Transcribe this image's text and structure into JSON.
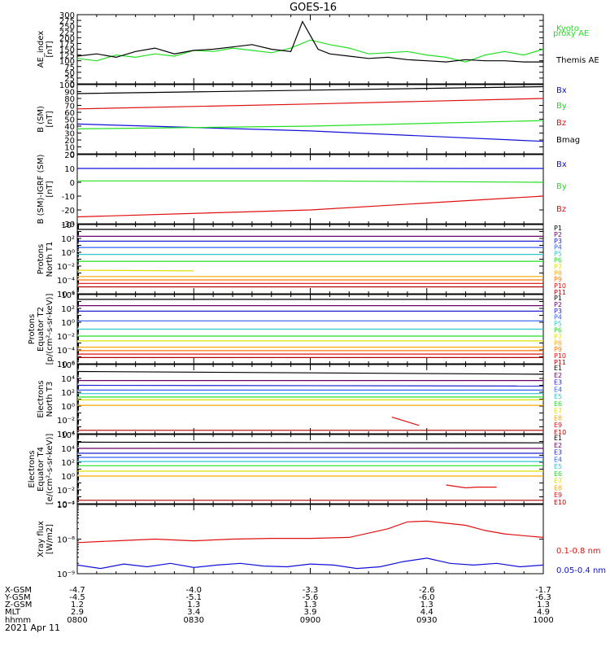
{
  "title": "GOES-16",
  "date_label": "2021 Apr 11",
  "colors": {
    "axis": "#000000",
    "black": "#000000",
    "green": "#22e022",
    "red": "#e01010",
    "blue": "#1010d8"
  },
  "chart_data": [
    {
      "id": "ae",
      "type": "line",
      "ylabel": [
        "AE_index",
        "[nT]"
      ],
      "ylim": [
        0,
        300
      ],
      "yticks": [
        "0",
        "25",
        "50",
        "75",
        "100",
        "125",
        "150",
        "175",
        "200",
        "225",
        "250",
        "275",
        "300"
      ],
      "xlim": [
        0,
        120
      ],
      "series": [
        {
          "name": "Kyoto",
          "name2": "proxy AE",
          "color": "#22e022",
          "x": [
            0,
            5,
            10,
            15,
            20,
            25,
            30,
            35,
            40,
            45,
            50,
            55,
            60,
            65,
            70,
            75,
            80,
            85,
            90,
            95,
            100,
            105,
            110,
            115,
            120
          ],
          "values": [
            110,
            100,
            125,
            115,
            130,
            120,
            145,
            140,
            155,
            145,
            135,
            155,
            190,
            170,
            155,
            130,
            135,
            140,
            125,
            115,
            95,
            125,
            140,
            125,
            150
          ]
        },
        {
          "name": "Themis AE",
          "color": "#000000",
          "x": [
            0,
            5,
            10,
            15,
            20,
            25,
            30,
            35,
            40,
            45,
            50,
            55,
            58,
            62,
            65,
            70,
            75,
            80,
            85,
            90,
            95,
            100,
            105,
            110,
            115,
            120
          ],
          "values": [
            120,
            130,
            115,
            140,
            155,
            130,
            145,
            150,
            160,
            170,
            150,
            140,
            270,
            150,
            130,
            120,
            110,
            115,
            105,
            100,
            95,
            105,
            100,
            100,
            95,
            95
          ]
        }
      ]
    },
    {
      "id": "b",
      "type": "line",
      "ylabel": [
        "B (SM)",
        "[nT]"
      ],
      "ylim": [
        0,
        100
      ],
      "yticks": [
        "0",
        "10",
        "20",
        "30",
        "40",
        "50",
        "60",
        "70",
        "80",
        "90",
        "100"
      ],
      "xlim": [
        0,
        120
      ],
      "series": [
        {
          "name": "Bx",
          "color": "#1010d8",
          "x": [
            0,
            60,
            120
          ],
          "values": [
            43,
            33,
            18
          ]
        },
        {
          "name": "By",
          "color": "#22e022",
          "x": [
            0,
            60,
            120
          ],
          "values": [
            36,
            40,
            48
          ]
        },
        {
          "name": "Bz",
          "color": "#e01010",
          "x": [
            0,
            60,
            120
          ],
          "values": [
            65,
            72,
            80
          ]
        },
        {
          "name": "Bmag",
          "color": "#000000",
          "x": [
            0,
            60,
            120
          ],
          "values": [
            87,
            92,
            97
          ]
        }
      ]
    },
    {
      "id": "dbsm",
      "type": "line",
      "ylabel": [
        "B (SM)-IGRF (SM)",
        "[nT]"
      ],
      "ylim": [
        -30,
        20
      ],
      "yticks": [
        "-30",
        "-20",
        "-10",
        "0",
        "10",
        "20"
      ],
      "xlim": [
        0,
        120
      ],
      "series": [
        {
          "name": "Bx",
          "color": "#1010d8",
          "x": [
            0,
            60,
            120
          ],
          "values": [
            10,
            10,
            10
          ]
        },
        {
          "name": "By",
          "color": "#22e022",
          "x": [
            0,
            60,
            120
          ],
          "values": [
            1,
            1,
            0
          ]
        },
        {
          "name": "Bz",
          "color": "#e01010",
          "x": [
            0,
            60,
            120
          ],
          "values": [
            -25,
            -20,
            -10
          ]
        }
      ]
    },
    {
      "id": "pn",
      "type": "line",
      "log": true,
      "ylabel": [
        "Protons",
        "North T1"
      ],
      "ylim": [
        -6,
        4
      ],
      "major": [
        -6,
        -4,
        -2,
        0,
        2,
        4
      ],
      "xlim": [
        0,
        120
      ],
      "series": [
        {
          "name": "P1",
          "color": "#000000",
          "x": [
            0,
            120
          ],
          "values": [
            3.3,
            3.3
          ]
        },
        {
          "name": "P2",
          "color": "#6a006a",
          "x": [
            0,
            120
          ],
          "values": [
            2.3,
            2.3
          ]
        },
        {
          "name": "P3",
          "color": "#2020d0",
          "x": [
            0,
            120
          ],
          "values": [
            1.6,
            1.6
          ]
        },
        {
          "name": "P4",
          "color": "#3060ff",
          "x": [
            0,
            120
          ],
          "values": [
            0.7,
            0.7
          ]
        },
        {
          "name": "P5",
          "color": "#30c8d0",
          "x": [
            0,
            120
          ],
          "values": [
            -0.3,
            -0.3
          ]
        },
        {
          "name": "P6",
          "color": "#22e022",
          "x": [
            0,
            120
          ],
          "values": [
            -1.3,
            -1.3
          ]
        },
        {
          "name": "P7",
          "color": "#e0e000",
          "x": [
            0,
            30
          ],
          "values": [
            -2.6,
            -2.7
          ]
        },
        {
          "name": "P8",
          "color": "#ffaa00",
          "x": [
            0,
            120
          ],
          "values": [
            -3.5,
            -3.5
          ]
        },
        {
          "name": "P9",
          "color": "#ff7700",
          "x": [
            0,
            120
          ],
          "values": [
            -4.0,
            -4.0
          ]
        },
        {
          "name": "P10",
          "color": "#e01010",
          "x": [
            0,
            120
          ],
          "values": [
            -4.5,
            -4.5
          ]
        },
        {
          "name": "P11",
          "color": "#b00000",
          "x": [
            0,
            120
          ],
          "values": [
            -5.0,
            -5.0
          ]
        }
      ]
    },
    {
      "id": "pe",
      "type": "line",
      "log": true,
      "ylabel": [
        "Protons",
        "Equator T2",
        "[p/(cm²-s-sr-keV)]"
      ],
      "ylim": [
        -6,
        4
      ],
      "major": [
        -6,
        -4,
        -2,
        0,
        2,
        4
      ],
      "xlim": [
        0,
        120
      ],
      "series": [
        {
          "name": "P1",
          "color": "#000000",
          "x": [
            0,
            120
          ],
          "values": [
            3.3,
            3.3
          ]
        },
        {
          "name": "P2",
          "color": "#6a006a",
          "x": [
            0,
            120
          ],
          "values": [
            2.4,
            2.4
          ]
        },
        {
          "name": "P3",
          "color": "#2020d0",
          "x": [
            0,
            120
          ],
          "values": [
            1.6,
            1.6
          ]
        },
        {
          "name": "P4",
          "color": "#3060ff",
          "x": [
            0,
            120
          ],
          "values": [
            0.2,
            0.2
          ]
        },
        {
          "name": "P5",
          "color": "#30c8d0",
          "x": [
            0,
            120
          ],
          "values": [
            -1.0,
            -1.0
          ]
        },
        {
          "name": "P6",
          "color": "#22e022",
          "x": [
            0,
            120
          ],
          "values": [
            -2.0,
            -2.0
          ]
        },
        {
          "name": "P7",
          "color": "#e0e000",
          "x": [
            0,
            120
          ],
          "values": [
            -2.7,
            -2.7
          ]
        },
        {
          "name": "P8",
          "color": "#ffaa00",
          "x": [
            0,
            120
          ],
          "values": [
            -3.6,
            -3.6
          ]
        },
        {
          "name": "P9",
          "color": "#ff7700",
          "x": [
            0,
            120
          ],
          "values": [
            -4.1,
            -4.1
          ]
        },
        {
          "name": "P10",
          "color": "#e01010",
          "x": [
            0,
            120
          ],
          "values": [
            -4.6,
            -4.6
          ]
        },
        {
          "name": "P11",
          "color": "#b00000",
          "x": [
            0,
            120
          ],
          "values": [
            -5.1,
            -5.1
          ]
        }
      ]
    },
    {
      "id": "en",
      "type": "line",
      "log": true,
      "ylabel": [
        "Electrons",
        "North T3"
      ],
      "ylim": [
        -4,
        6
      ],
      "major": [
        -4,
        -2,
        0,
        2,
        4,
        6
      ],
      "xlim": [
        0,
        120
      ],
      "series": [
        {
          "name": "E1",
          "color": "#000000",
          "x": [
            0,
            120
          ],
          "values": [
            5.0,
            4.6
          ]
        },
        {
          "name": "E2",
          "color": "#6a006a",
          "x": [
            0,
            120
          ],
          "values": [
            3.7,
            3.7
          ]
        },
        {
          "name": "E3",
          "color": "#2020d0",
          "x": [
            0,
            120
          ],
          "values": [
            3.0,
            2.9
          ]
        },
        {
          "name": "E4",
          "color": "#3060ff",
          "x": [
            0,
            120
          ],
          "values": [
            2.3,
            2.3
          ]
        },
        {
          "name": "E5",
          "color": "#30c8d0",
          "x": [
            0,
            120
          ],
          "values": [
            1.8,
            1.8
          ]
        },
        {
          "name": "E6",
          "color": "#22e022",
          "x": [
            0,
            120
          ],
          "values": [
            1.3,
            1.3
          ]
        },
        {
          "name": "E7",
          "color": "#e0e000",
          "x": [
            0,
            120
          ],
          "values": [
            0.9,
            0.9
          ]
        },
        {
          "name": "E8",
          "color": "#ffaa00",
          "x": [
            0,
            120
          ],
          "values": [
            0.1,
            0.1
          ]
        },
        {
          "name": "E9",
          "color": "#e01010",
          "x": [
            81,
            88
          ],
          "values": [
            -1.6,
            -2.8
          ]
        },
        {
          "name": "E10",
          "color": "#b00000",
          "x": [
            0,
            120
          ],
          "values": [
            -3.5,
            -3.5
          ]
        }
      ]
    },
    {
      "id": "ee",
      "type": "line",
      "log": true,
      "ylabel": [
        "Electrons",
        "Equator T4",
        "[e/(cm²-s-sr-keV)]"
      ],
      "ylim": [
        -4,
        6
      ],
      "major": [
        -4,
        -2,
        0,
        2,
        4,
        6
      ],
      "xlim": [
        0,
        120
      ],
      "series": [
        {
          "name": "E1",
          "color": "#000000",
          "x": [
            0,
            120
          ],
          "values": [
            4.9,
            4.8
          ]
        },
        {
          "name": "E2",
          "color": "#6a006a",
          "x": [
            0,
            120
          ],
          "values": [
            4.0,
            4.0
          ]
        },
        {
          "name": "E3",
          "color": "#2020d0",
          "x": [
            0,
            120
          ],
          "values": [
            3.3,
            3.3
          ]
        },
        {
          "name": "E4",
          "color": "#3060ff",
          "x": [
            0,
            120
          ],
          "values": [
            2.7,
            2.7
          ]
        },
        {
          "name": "E5",
          "color": "#30c8d0",
          "x": [
            0,
            120
          ],
          "values": [
            2.1,
            2.1
          ]
        },
        {
          "name": "E6",
          "color": "#22e022",
          "x": [
            0,
            120
          ],
          "values": [
            1.5,
            1.5
          ]
        },
        {
          "name": "E7",
          "color": "#e0e000",
          "x": [
            0,
            120
          ],
          "values": [
            0.7,
            0.7
          ]
        },
        {
          "name": "E8",
          "color": "#ffaa00",
          "x": [
            0,
            120
          ],
          "values": [
            0.0,
            0.0
          ]
        },
        {
          "name": "E9",
          "color": "#e01010",
          "x": [
            95,
            100,
            103,
            108
          ],
          "values": [
            -1.3,
            -1.7,
            -1.6,
            -1.6
          ]
        },
        {
          "name": "E10",
          "color": "#b00000",
          "x": [
            0,
            120
          ],
          "values": [
            -3.5,
            -3.5
          ]
        }
      ]
    },
    {
      "id": "xray",
      "type": "line",
      "log": true,
      "ylabel": [
        "Xray flux",
        "[W/m2]"
      ],
      "ylim": [
        -9,
        -7
      ],
      "major": [
        -9,
        -8,
        -7
      ],
      "xlim": [
        0,
        120
      ],
      "series": [
        {
          "name": "0.1-0.8 nm",
          "color": "#e01010",
          "x": [
            0,
            10,
            20,
            30,
            40,
            50,
            60,
            70,
            80,
            85,
            90,
            100,
            105,
            110,
            115,
            120
          ],
          "values": [
            -8.1,
            -8.05,
            -8.0,
            -8.05,
            -8.0,
            -7.98,
            -7.98,
            -7.95,
            -7.7,
            -7.5,
            -7.48,
            -7.6,
            -7.75,
            -7.85,
            -7.9,
            -7.95
          ]
        },
        {
          "name": "0.05-0.4 nm",
          "color": "#1010d8",
          "x": [
            0,
            6,
            12,
            18,
            24,
            30,
            36,
            42,
            48,
            54,
            60,
            66,
            72,
            78,
            84,
            90,
            96,
            102,
            108,
            114,
            120
          ],
          "values": [
            -8.75,
            -8.85,
            -8.72,
            -8.8,
            -8.7,
            -8.82,
            -8.75,
            -8.7,
            -8.78,
            -8.8,
            -8.72,
            -8.75,
            -8.85,
            -8.8,
            -8.65,
            -8.55,
            -8.7,
            -8.75,
            -8.7,
            -8.8,
            -8.75
          ]
        }
      ]
    }
  ],
  "orbit": {
    "labels": [
      "X-GSM",
      "Y-GSM",
      "Z-GSM",
      "MLT",
      "hhmm"
    ],
    "columns": [
      {
        "t": 0,
        "vals": [
          "-4.7",
          "-4.5",
          "1.2",
          "2.9",
          "0800"
        ]
      },
      {
        "t": 30,
        "vals": [
          "-4.0",
          "-5.1",
          "1.3",
          "3.4",
          "0830"
        ]
      },
      {
        "t": 60,
        "vals": [
          "-3.3",
          "-5.6",
          "1.3",
          "3.9",
          "0900"
        ]
      },
      {
        "t": 90,
        "vals": [
          "-2.6",
          "-6.0",
          "1.3",
          "4.4",
          "0930"
        ]
      },
      {
        "t": 120,
        "vals": [
          "-1.7",
          "-6.3",
          "1.3",
          "4.9",
          "1000"
        ]
      }
    ]
  }
}
